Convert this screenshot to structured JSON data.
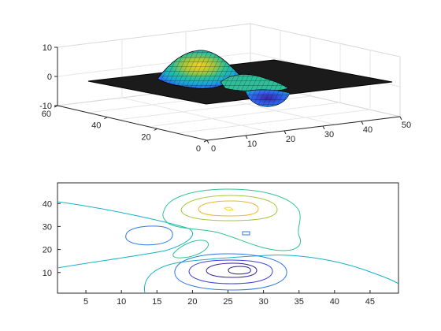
{
  "chart_data": [
    {
      "type": "surface",
      "description_of_surface": "",
      "x_ticks": [
        "0",
        "10",
        "20",
        "30",
        "40",
        "50"
      ],
      "y_ticks": [
        "0",
        "20",
        "40",
        "60"
      ],
      "z_ticks": [
        "-10",
        "0",
        "10"
      ],
      "xlim": [
        0,
        50
      ],
      "ylim": [
        0,
        60
      ],
      "zlim": [
        -10,
        10
      ],
      "grid": true,
      "colormap": [
        "#3e26a8",
        "#2e64f5",
        "#1aa6d6",
        "#2cc09a",
        "#a9c63a",
        "#f7d31f"
      ],
      "peaks": [
        {
          "x": 25,
          "y": 38,
          "z": 8
        },
        {
          "x": 14,
          "y": 27,
          "z": -3
        },
        {
          "x": 28,
          "y": 12,
          "z": -6.5
        }
      ]
    },
    {
      "type": "contour",
      "x_ticks": [
        "5",
        "10",
        "15",
        "20",
        "25",
        "30",
        "35",
        "40",
        "45"
      ],
      "y_ticks": [
        "10",
        "20",
        "30",
        "40"
      ],
      "xlim": [
        1,
        49
      ],
      "ylim": [
        1,
        49
      ],
      "levels": [
        -6,
        -4,
        -2,
        0,
        2,
        4,
        6,
        8
      ],
      "level_colors": [
        "#3422a0",
        "#3d3fd8",
        "#2f78e8",
        "#14b2c8",
        "#2ec48f",
        "#a4c640",
        "#e9b92e",
        "#f5d91a"
      ]
    }
  ]
}
